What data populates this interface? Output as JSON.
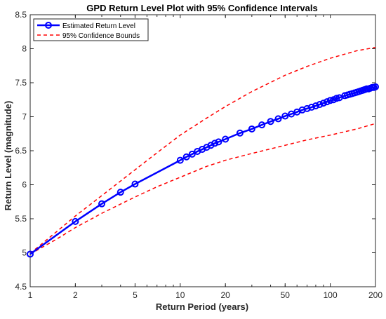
{
  "chart_data": {
    "type": "line",
    "title": "GPD Return Level Plot with 95% Confidence Intervals",
    "xlabel": "Return Period (years)",
    "ylabel": "Return Level (magnitude)",
    "xscale": "log",
    "xlim": [
      1,
      200
    ],
    "ylim": [
      4.5,
      8.5
    ],
    "x_ticks": [
      1,
      2,
      5,
      10,
      20,
      50,
      100,
      200
    ],
    "x_tick_labels": [
      "1",
      "2",
      "5",
      "10",
      "20",
      "50",
      "100",
      "200"
    ],
    "y_ticks": [
      4.5,
      5,
      5.5,
      6,
      6.5,
      7,
      7.5,
      8,
      8.5
    ],
    "y_tick_labels": [
      "4.5",
      "5",
      "5.5",
      "6",
      "6.5",
      "7",
      "7.5",
      "8",
      "8.5"
    ],
    "grid": false,
    "legend_position": "top-left",
    "series": [
      {
        "name": "Estimated Return Level",
        "color": "#0000ff",
        "style": "solid-with-circle-markers",
        "x": [
          1,
          2,
          3,
          4,
          5,
          10,
          11,
          12,
          13,
          14,
          15,
          16,
          17,
          18,
          20,
          25,
          30,
          35,
          40,
          45,
          50,
          55,
          60,
          65,
          70,
          75,
          80,
          85,
          90,
          95,
          100,
          105,
          110,
          115,
          125,
          130,
          135,
          140,
          145,
          150,
          155,
          160,
          165,
          170,
          175,
          180,
          185,
          190,
          195,
          200
        ],
        "y": [
          4.98,
          5.46,
          5.72,
          5.89,
          6.01,
          6.36,
          6.41,
          6.45,
          6.49,
          6.52,
          6.55,
          6.58,
          6.61,
          6.63,
          6.67,
          6.76,
          6.82,
          6.88,
          6.93,
          6.97,
          7.01,
          7.04,
          7.07,
          7.1,
          7.12,
          7.14,
          7.16,
          7.18,
          7.2,
          7.22,
          7.24,
          7.25,
          7.27,
          7.28,
          7.31,
          7.32,
          7.33,
          7.34,
          7.35,
          7.36,
          7.37,
          7.38,
          7.39,
          7.4,
          7.41,
          7.41,
          7.42,
          7.43,
          7.43,
          7.44
        ]
      },
      {
        "name": "95% Confidence Bounds",
        "color": "#ff0000",
        "style": "dashed",
        "bounds": [
          {
            "x": [
              1,
              1.5,
              2,
              3,
              5,
              7,
              10,
              15,
              20,
              30,
              50,
              70,
              100,
              150,
              200
            ],
            "y": [
              4.99,
              5.31,
              5.54,
              5.84,
              6.22,
              6.47,
              6.73,
              6.98,
              7.15,
              7.37,
              7.61,
              7.74,
              7.86,
              7.97,
              8.02
            ]
          },
          {
            "x": [
              1,
              1.5,
              2,
              3,
              5,
              7,
              10,
              15,
              20,
              30,
              50,
              70,
              100,
              150,
              200
            ],
            "y": [
              4.98,
              5.2,
              5.37,
              5.58,
              5.82,
              5.97,
              6.11,
              6.27,
              6.36,
              6.46,
              6.58,
              6.66,
              6.73,
              6.82,
              6.9
            ]
          }
        ]
      }
    ]
  }
}
